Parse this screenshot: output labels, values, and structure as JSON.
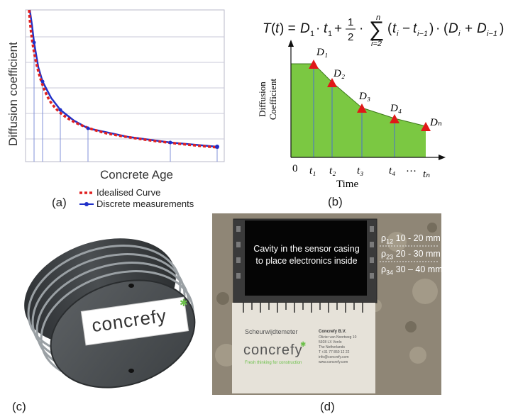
{
  "panel_a": {
    "caption": "(a)",
    "ylabel": "Diffusion coefficient",
    "xlabel": "Concrete Age",
    "legend": [
      {
        "label": "Idealised Curve",
        "color": "#e02020",
        "style": "dotted"
      },
      {
        "label": "Discrete measurements",
        "color": "#2030c8",
        "style": "line-marker"
      }
    ]
  },
  "panel_b": {
    "caption": "(b)",
    "formula": "T(t) = D₁ · t₁ + ½ · ∑ₙᵢ₌₂ (tᵢ − tᵢ₋₁) · (Dᵢ + Dᵢ₋₁)",
    "ylabel_line1": "Diffusion",
    "ylabel_line2": "Coefficient",
    "xlabel": "Time",
    "origin": "0",
    "points": [
      "D₁",
      "D₂",
      "D₃",
      "D₄",
      "Dₙ"
    ],
    "ticks": [
      "t₁",
      "t₂",
      "t₃",
      "t₄",
      "…",
      "tₙ"
    ],
    "fill_color": "#7bc842",
    "marker_color": "#e01818"
  },
  "panel_c": {
    "caption": "(c)",
    "brand": "concrefy"
  },
  "panel_d": {
    "caption": "(d)",
    "cavity_line1": "Cavity in the sensor casing",
    "cavity_line2": "to place electronics inside",
    "rho_labels": [
      {
        "symbol": "ρ",
        "sub": "12",
        "range": "10 - 20 mm"
      },
      {
        "symbol": "ρ",
        "sub": "23",
        "range": "20 - 30 mm"
      },
      {
        "symbol": "ρ",
        "sub": "34",
        "range": "30 – 40 mm"
      }
    ],
    "card_title": "Scheurwijdtemeter",
    "card_brand": "concrefy",
    "card_tagline": "Fresh thinking for construction",
    "card_company": "Concrefy B.V.",
    "card_address": [
      "Olivier van Noortweg 10",
      "5928 LX Venlo",
      "The Netherlands",
      "T +31 77 850 12 22",
      "info@concrefy.com",
      "www.concrefy.com"
    ]
  }
}
